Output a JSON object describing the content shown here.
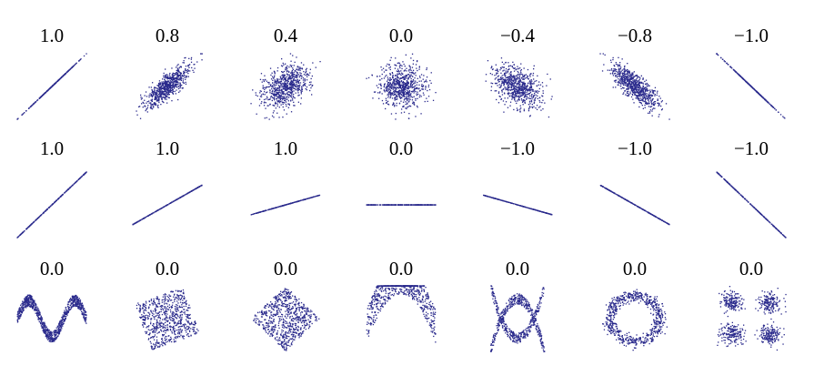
{
  "chart_data": {
    "type": "scatter",
    "point_color": "#2a2a8c",
    "rows": [
      {
        "panels": [
          {
            "label": "1.0",
            "pattern": "correlated",
            "r": 1.0
          },
          {
            "label": "0.8",
            "pattern": "correlated",
            "r": 0.8
          },
          {
            "label": "0.4",
            "pattern": "correlated",
            "r": 0.4
          },
          {
            "label": "0.0",
            "pattern": "correlated",
            "r": 0.0
          },
          {
            "label": "−0.4",
            "pattern": "correlated",
            "r": -0.4
          },
          {
            "label": "−0.8",
            "pattern": "correlated",
            "r": -0.8
          },
          {
            "label": "−1.0",
            "pattern": "correlated",
            "r": -1.0
          }
        ]
      },
      {
        "panels": [
          {
            "label": "1.0",
            "pattern": "line",
            "slope": 1.0
          },
          {
            "label": "1.0",
            "pattern": "line",
            "slope": 0.6
          },
          {
            "label": "1.0",
            "pattern": "line",
            "slope": 0.3
          },
          {
            "label": "0.0",
            "pattern": "line",
            "slope": 0.0
          },
          {
            "label": "−1.0",
            "pattern": "line",
            "slope": -0.3
          },
          {
            "label": "−1.0",
            "pattern": "line",
            "slope": -0.6
          },
          {
            "label": "−1.0",
            "pattern": "line",
            "slope": -1.0
          }
        ]
      },
      {
        "panels": [
          {
            "label": "0.0",
            "pattern": "wave"
          },
          {
            "label": "0.0",
            "pattern": "rotated-square",
            "angle_deg": 20
          },
          {
            "label": "0.0",
            "pattern": "rotated-square",
            "angle_deg": 45
          },
          {
            "label": "0.0",
            "pattern": "parabola"
          },
          {
            "label": "0.0",
            "pattern": "x-shape"
          },
          {
            "label": "0.0",
            "pattern": "ring"
          },
          {
            "label": "0.0",
            "pattern": "four-clusters"
          }
        ]
      }
    ]
  }
}
